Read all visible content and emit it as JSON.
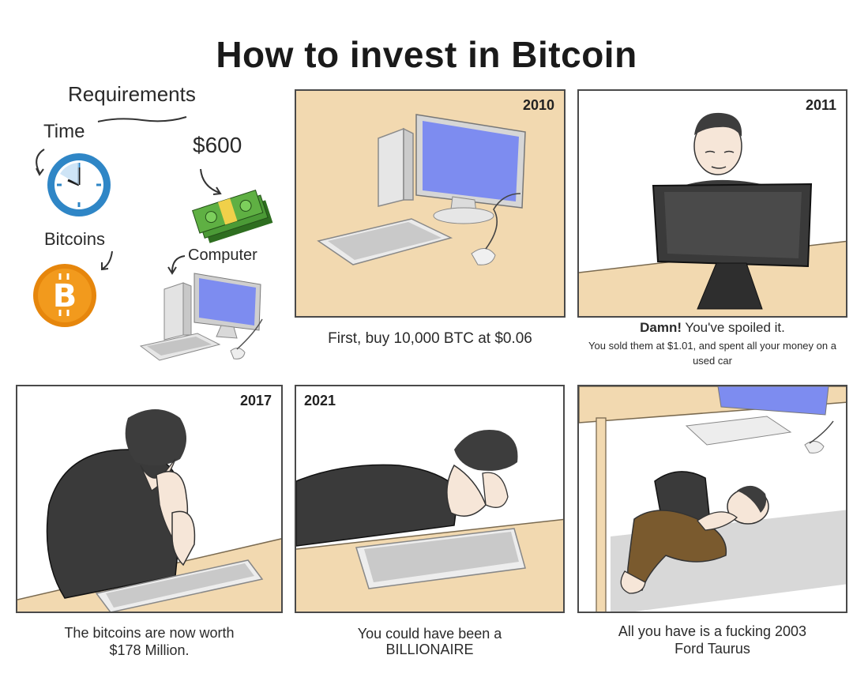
{
  "title": "How to invest in Bitcoin",
  "requirements": {
    "heading": "Requirements",
    "time_label": "Time",
    "money_label": "$600",
    "bitcoins_label": "Bitcoins",
    "computer_label": "Computer",
    "icons": [
      "clock-icon",
      "money-stack-icon",
      "bitcoin-coin-icon",
      "computer-icon"
    ]
  },
  "panels": [
    {
      "year": "2010",
      "caption": "First, buy 10,000 BTC at $0.06"
    },
    {
      "year": "2011",
      "caption_bold": "Damn!",
      "caption_rest": " You've spoiled it.",
      "caption_small": "You sold them at $1.01, and spent all your money on a used car"
    },
    {
      "year": "2017",
      "caption_line1": "The bitcoins are now worth",
      "caption_line2": "$178 Million."
    },
    {
      "year": "2021",
      "caption_line1": "You could have been a",
      "caption_line2": "BILLIONAIRE"
    },
    {
      "year": "",
      "caption_line1": "All you have is a fucking 2003",
      "caption_line2": "Ford Taurus"
    }
  ],
  "colors": {
    "desk_tan": "#f2d9b0",
    "screen_blue": "#7d8cf0",
    "bitcoin_orange": "#f29a1d",
    "clock_blue": "#2f86c6",
    "money_green": "#3d8a2c"
  }
}
